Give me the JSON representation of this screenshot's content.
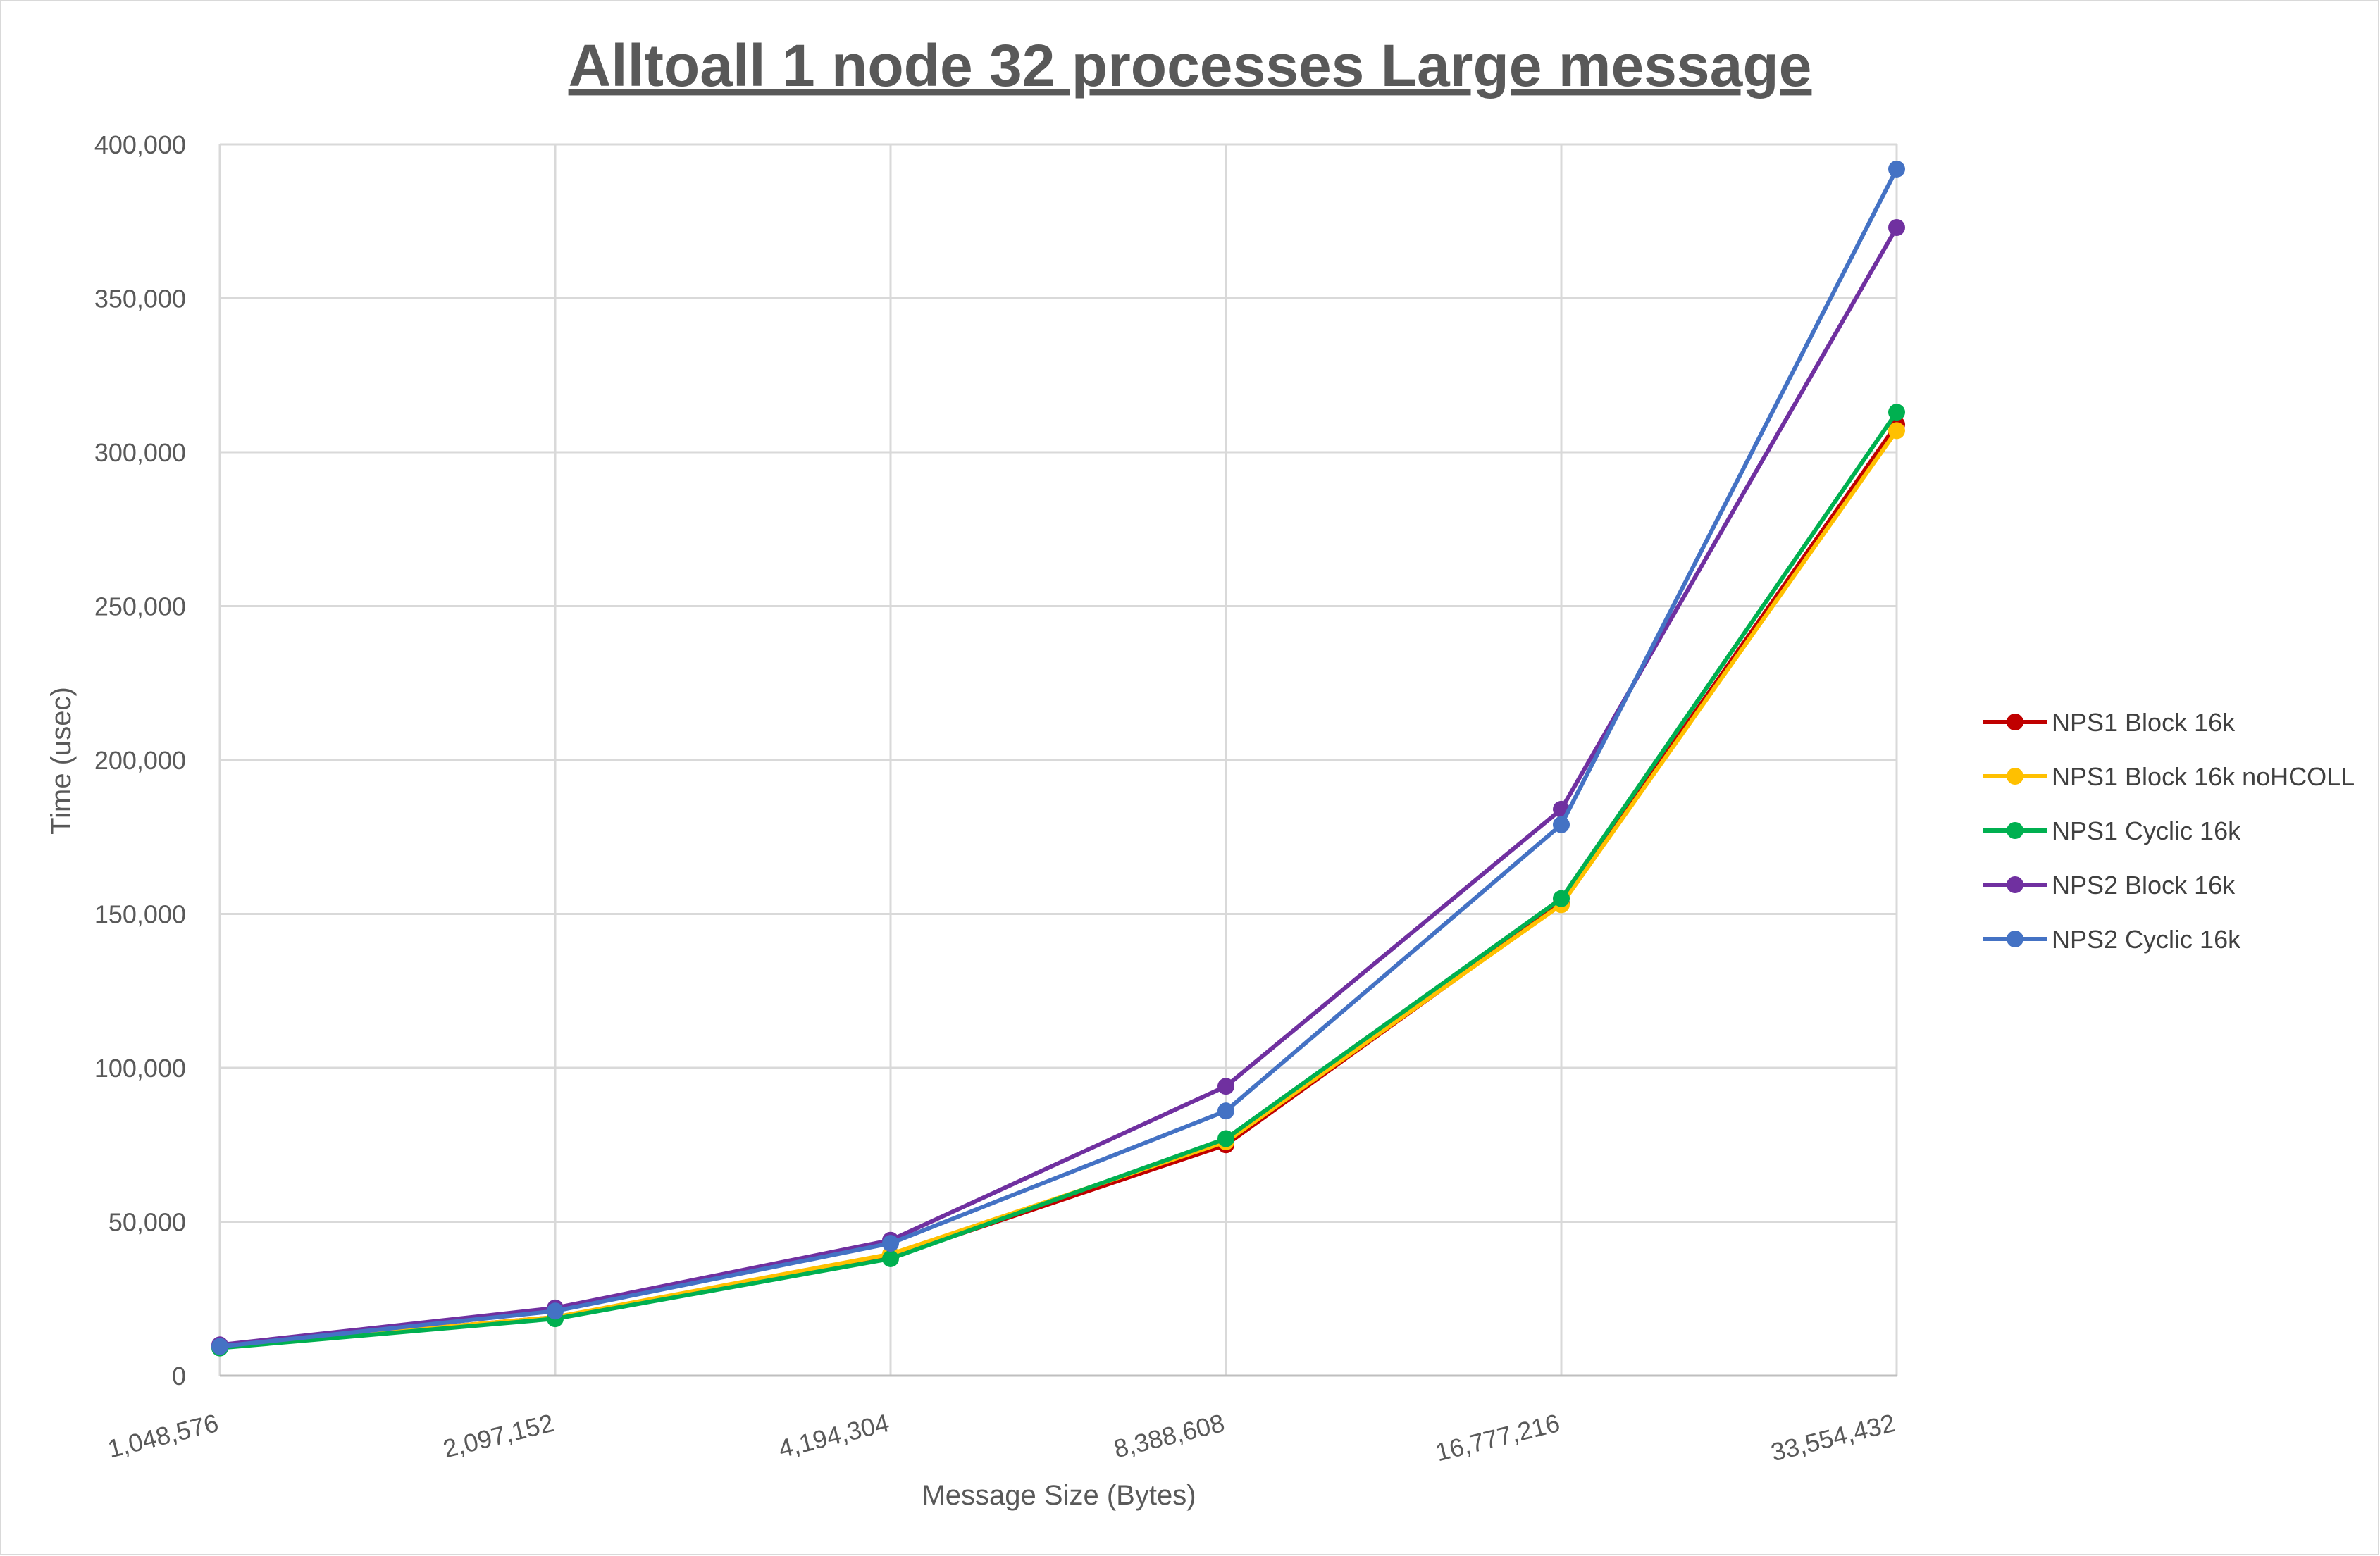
{
  "chart_data": {
    "type": "line",
    "title": "Alltoall 1 node 32 processes Large message",
    "xlabel": "Message Size (Bytes)",
    "ylabel": "Time (usec)",
    "categories": [
      "1,048,576",
      "2,097,152",
      "4,194,304",
      "8,388,608",
      "16,777,216",
      "33,554,432"
    ],
    "ylim": [
      0,
      400000
    ],
    "yticks": [
      0,
      50000,
      100000,
      150000,
      200000,
      250000,
      300000,
      350000,
      400000
    ],
    "ytick_labels": [
      "0",
      "50,000",
      "100,000",
      "150,000",
      "200,000",
      "250,000",
      "300,000",
      "350,000",
      "400,000"
    ],
    "grid": true,
    "legend_position": "right",
    "series": [
      {
        "name": "NPS1 Block 16k",
        "color": "#c00000",
        "values": [
          9500,
          19000,
          38500,
          75000,
          153500,
          309000
        ]
      },
      {
        "name": "NPS1 Block 16k noHCOLL",
        "color": "#ffc000",
        "values": [
          9500,
          19000,
          39500,
          76000,
          153000,
          307000
        ]
      },
      {
        "name": "NPS1 Cyclic 16k",
        "color": "#00b050",
        "values": [
          9000,
          18500,
          38000,
          77000,
          155000,
          313000
        ]
      },
      {
        "name": "NPS2 Block 16k",
        "color": "#7030a0",
        "values": [
          10000,
          22000,
          44000,
          94000,
          184000,
          373000
        ]
      },
      {
        "name": "NPS2 Cyclic 16k",
        "color": "#4472c4",
        "values": [
          9500,
          21000,
          43000,
          86000,
          179000,
          392000
        ]
      }
    ]
  }
}
